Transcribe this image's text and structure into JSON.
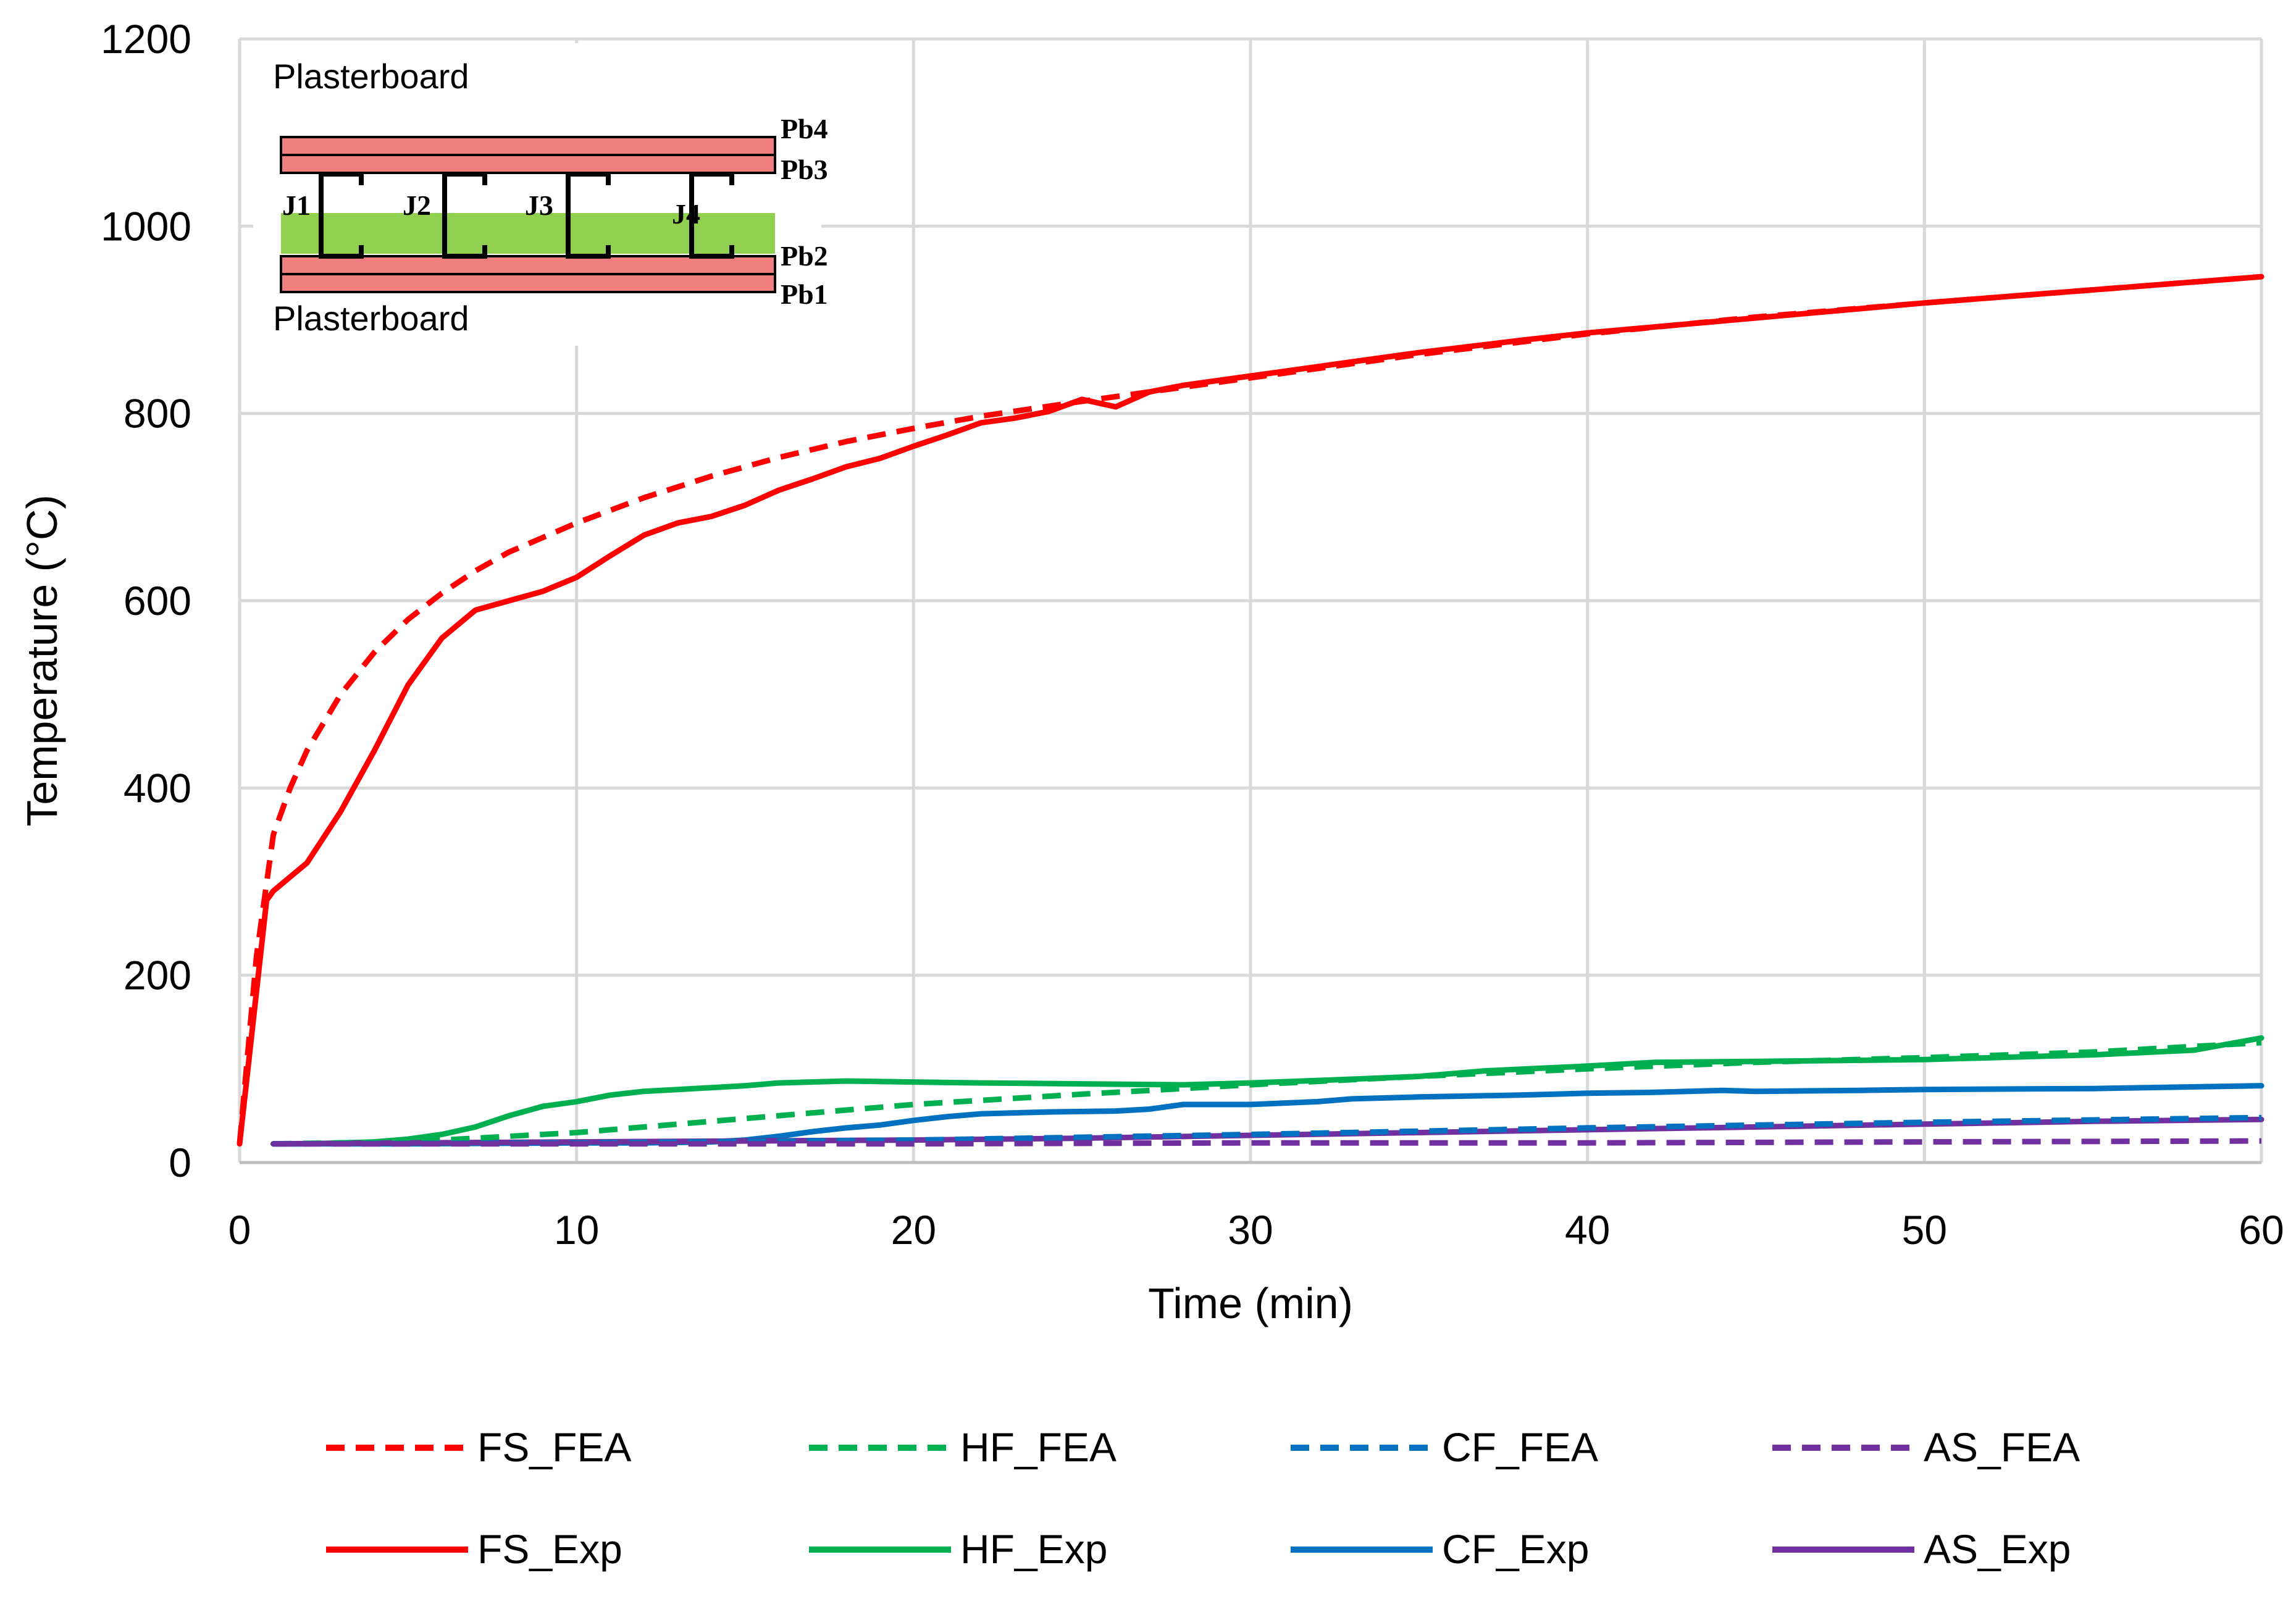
{
  "chart_data": {
    "type": "line",
    "title": "",
    "xlabel": "Time (min)",
    "ylabel": "Temperature (°C)",
    "xlim": [
      0,
      60
    ],
    "ylim": [
      0,
      1200
    ],
    "xticks": [
      0,
      10,
      20,
      30,
      40,
      50,
      60
    ],
    "yticks": [
      0,
      200,
      400,
      600,
      800,
      1000,
      1200
    ],
    "grid": true,
    "legend_position": "bottom",
    "series": [
      {
        "name": "FS_FEA",
        "color": "#ff0000",
        "dash": true,
        "x": [
          0,
          0.5,
          1,
          1.5,
          2,
          3,
          4,
          5,
          6,
          7,
          8,
          10,
          12,
          14,
          16,
          18,
          20,
          22,
          25,
          27,
          30,
          35,
          40,
          45,
          50,
          55,
          60
        ],
        "y": [
          20,
          220,
          350,
          400,
          440,
          500,
          545,
          580,
          608,
          632,
          652,
          683,
          710,
          733,
          753,
          770,
          784,
          797,
          813,
          823,
          838,
          863,
          885,
          903,
          918,
          932,
          946
        ]
      },
      {
        "name": "HF_FEA",
        "color": "#00b050",
        "dash": true,
        "x": [
          1,
          5,
          10,
          15,
          20,
          25,
          30,
          35,
          40,
          45,
          50,
          55,
          60
        ],
        "y": [
          20,
          22,
          32,
          47,
          62,
          73,
          83,
          92,
          100,
          107,
          112,
          118,
          128
        ]
      },
      {
        "name": "CF_FEA",
        "color": "#0070c0",
        "dash": true,
        "x": [
          1,
          10,
          20,
          30,
          40,
          50,
          60
        ],
        "y": [
          20,
          21,
          24,
          30,
          37,
          43,
          48
        ]
      },
      {
        "name": "AS_FEA",
        "color": "#7030a0",
        "dash": true,
        "x": [
          1,
          10,
          20,
          30,
          40,
          50,
          60
        ],
        "y": [
          20,
          20,
          20,
          21,
          21,
          22,
          23
        ]
      },
      {
        "name": "FS_Exp",
        "color": "#ff0000",
        "dash": false,
        "x": [
          0,
          0.8,
          1,
          2,
          3,
          4,
          5,
          6,
          7,
          8,
          9,
          10,
          11,
          12,
          13,
          14,
          15,
          16,
          17,
          18,
          19,
          20,
          21,
          22,
          23,
          24,
          25,
          26,
          27,
          28,
          29,
          30,
          32,
          35,
          38,
          40,
          45,
          50,
          55,
          60
        ],
        "y": [
          20,
          280,
          290,
          320,
          375,
          440,
          510,
          560,
          590,
          600,
          610,
          625,
          648,
          670,
          683,
          690,
          702,
          718,
          730,
          743,
          752,
          765,
          777,
          790,
          795,
          802,
          815,
          807,
          823,
          830,
          835,
          840,
          850,
          865,
          878,
          886,
          902,
          918,
          932,
          946
        ]
      },
      {
        "name": "HF_Exp",
        "color": "#00b050",
        "dash": false,
        "x": [
          1,
          2,
          3,
          4,
          5,
          6,
          7,
          8,
          9,
          10,
          11,
          12,
          13,
          14,
          15,
          16,
          18,
          20,
          22,
          25,
          28,
          30,
          33,
          35,
          37,
          40,
          42,
          45,
          50,
          55,
          58,
          60
        ],
        "y": [
          20,
          20,
          21,
          22,
          25,
          30,
          38,
          50,
          60,
          65,
          72,
          76,
          78,
          80,
          82,
          85,
          87,
          86,
          85,
          84,
          83,
          85,
          89,
          92,
          98,
          103,
          107,
          108,
          110,
          115,
          120,
          133
        ]
      },
      {
        "name": "CF_Exp",
        "color": "#0070c0",
        "dash": false,
        "x": [
          1,
          5,
          10,
          12,
          14,
          15,
          16,
          17,
          18,
          19,
          20,
          21,
          22,
          24,
          26,
          27,
          28,
          30,
          32,
          33,
          35,
          38,
          40,
          42,
          44,
          45,
          48,
          50,
          55,
          60
        ],
        "y": [
          20,
          20,
          21,
          21,
          22,
          24,
          28,
          33,
          37,
          40,
          45,
          49,
          52,
          54,
          55,
          57,
          62,
          62,
          65,
          68,
          70,
          72,
          74,
          75,
          77,
          76,
          77,
          78,
          79,
          82
        ]
      },
      {
        "name": "AS_Exp",
        "color": "#7030a0",
        "dash": false,
        "x": [
          1,
          5,
          10,
          15,
          20,
          25,
          30,
          35,
          40,
          45,
          50,
          55,
          60
        ],
        "y": [
          20,
          21,
          22,
          23,
          24,
          26,
          29,
          32,
          35,
          38,
          41,
          44,
          46
        ]
      }
    ],
    "inset": {
      "top_label": "Plasterboard",
      "bottom_label": "Plasterboard",
      "board_labels": [
        "Pb4",
        "Pb3",
        "Pb2",
        "Pb1"
      ],
      "stud_labels": [
        "J1",
        "J2",
        "J3",
        "J4"
      ],
      "board_color": "#f08080",
      "cavity_color": "#92d050"
    }
  }
}
